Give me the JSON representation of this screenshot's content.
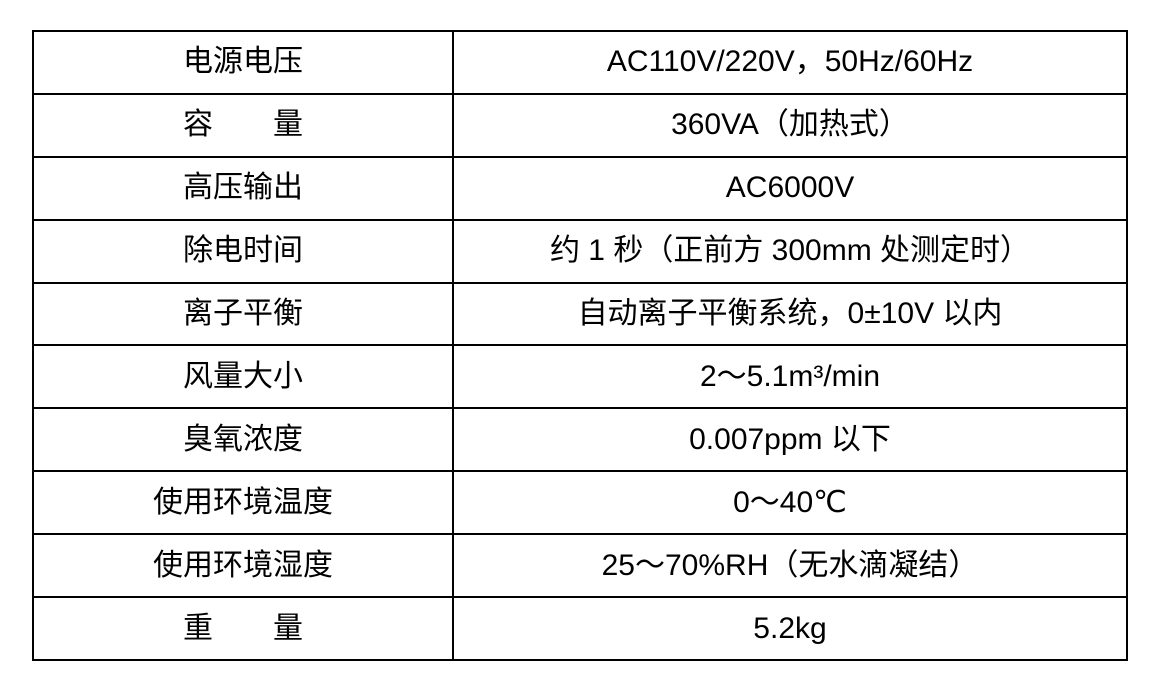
{
  "table": {
    "background": "#ffffff",
    "border_color": "#000000",
    "text_color": "#000000",
    "rows": [
      {
        "label": "电源电压",
        "value": "AC110V/220V，50Hz/60Hz"
      },
      {
        "label": "容　　量",
        "value": "360VA（加热式）"
      },
      {
        "label": "高压输出",
        "value": "AC6000V"
      },
      {
        "label": "除电时间",
        "value": "约 1 秒（正前方 300mm 处测定时）"
      },
      {
        "label": "离子平衡",
        "value": "自动离子平衡系统，0±10V 以内"
      },
      {
        "label": "风量大小",
        "value": "2～5.1m³/min"
      },
      {
        "label": "臭氧浓度",
        "value": "0.007ppm 以下"
      },
      {
        "label": "使用环境温度",
        "value": "0～40℃"
      },
      {
        "label": "使用环境湿度",
        "value": "25～70%RH（无水滴凝结）"
      },
      {
        "label": "重　　量",
        "value": "5.2kg"
      }
    ]
  }
}
